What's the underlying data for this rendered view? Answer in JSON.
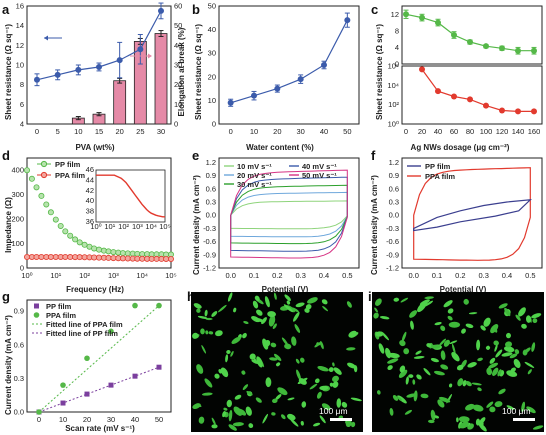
{
  "chart_data": [
    {
      "id": "a",
      "panel_label": "a",
      "type": "bar",
      "xlabel": "PVA (wt%)",
      "ylabel": "Sheet resistance (Ω sq⁻¹)",
      "y2label": "Elongation at break (%)",
      "categories": [
        "0",
        "5",
        "10",
        "15",
        "20",
        "25",
        "30"
      ],
      "ylim": [
        4,
        16
      ],
      "yticks": [
        4,
        6,
        8,
        10,
        12,
        14,
        16
      ],
      "y2lim": [
        0,
        60
      ],
      "y2ticks": [
        0,
        10,
        20,
        30,
        40,
        50,
        60
      ],
      "series": [
        {
          "name": "Sheet resistance",
          "axis": "left",
          "values": [
            8.5,
            9.0,
            9.5,
            9.8,
            10.5,
            11.6,
            15.5
          ],
          "errors": [
            0.6,
            0.5,
            0.5,
            0.4,
            1.8,
            1.5,
            0.8
          ],
          "color": "#3b5bab"
        },
        {
          "name": "Elongation at break",
          "axis": "right",
          "values": [
            null,
            null,
            3,
            5,
            22,
            42,
            46
          ],
          "errors": [
            0,
            0,
            0.8,
            0.8,
            1.2,
            1.5,
            1.5
          ],
          "color": "#e58aa7"
        }
      ],
      "color": "#3b5bab"
    },
    {
      "id": "b",
      "panel_label": "b",
      "type": "line",
      "xlabel": "Water content (%)",
      "ylabel": "Sheet resistance (Ω sq⁻¹)",
      "x": [
        0,
        10,
        20,
        30,
        40,
        50
      ],
      "values": [
        9,
        12,
        15,
        19,
        25,
        44
      ],
      "errors": [
        1.5,
        1.8,
        1.5,
        1.8,
        1.6,
        3
      ],
      "xlim": [
        -5,
        55
      ],
      "xticks": [
        0,
        10,
        20,
        30,
        40,
        50
      ],
      "ylim": [
        0,
        50
      ],
      "yticks": [
        0,
        10,
        20,
        30,
        40,
        50
      ],
      "color": "#3b5bab"
    },
    {
      "id": "c",
      "panel_label": "c",
      "type": "line",
      "xlabel": "Ag NWs dosage (μg cm⁻²)",
      "ylabel": "Sheet resistance (Ω sq⁻¹)",
      "x": [
        0,
        20,
        40,
        60,
        80,
        100,
        120,
        140,
        160
      ],
      "top": {
        "values": [
          12,
          11.2,
          10,
          7,
          5.3,
          4.3,
          3.8,
          3.2,
          3.2
        ],
        "errors": [
          1,
          0.8,
          0.8,
          0.8,
          0.5,
          0.4,
          0.5,
          0.8,
          0.8
        ],
        "ylim": [
          0,
          14
        ],
        "yticks": [
          0,
          4,
          8,
          12
        ],
        "color": "#55b848"
      },
      "bottom": {
        "x": [
          20,
          40,
          60,
          80,
          100,
          120,
          140,
          160
        ],
        "values": [
          450000,
          2500,
          700,
          350,
          80,
          25,
          20,
          20
        ],
        "ylim_exp": [
          0,
          6
        ],
        "yticks": [
          "10⁰",
          "10²",
          "10⁴",
          "10⁶"
        ],
        "color": "#e23a2e"
      },
      "xlim": [
        0,
        165
      ],
      "xticks": [
        0,
        20,
        40,
        60,
        80,
        100,
        120,
        140,
        160
      ]
    },
    {
      "id": "d",
      "panel_label": "d",
      "type": "scatter",
      "xlabel": "Frequency (Hz)",
      "ylabel": "Impedance (Ω)",
      "xlim_exp": [
        0,
        5
      ],
      "xticks": [
        "10⁰",
        "10¹",
        "10²",
        "10³",
        "10⁴",
        "10⁵"
      ],
      "ylim": [
        0,
        450
      ],
      "yticks": [
        0,
        100,
        200,
        300,
        400
      ],
      "series": [
        {
          "name": "PP film",
          "color": "#55b848",
          "x_exp": [
            0,
            0.17,
            0.33,
            0.5,
            0.67,
            0.83,
            1,
            1.17,
            1.33,
            1.5,
            1.67,
            1.83,
            2,
            2.17,
            2.33,
            2.5,
            2.67,
            2.83,
            3,
            3.17,
            3.33,
            3.5,
            3.67,
            3.83,
            4,
            4.17,
            4.33,
            4.5,
            4.67,
            4.83,
            5
          ],
          "values": [
            400,
            365,
            330,
            295,
            260,
            228,
            198,
            172,
            150,
            132,
            117,
            105,
            95,
            87,
            80,
            75,
            71,
            68,
            65,
            63,
            61,
            60,
            59,
            58,
            57,
            57,
            56,
            56,
            56,
            55,
            55
          ]
        },
        {
          "name": "PPA film",
          "color": "#e23a2e",
          "x_exp": [
            0,
            0.17,
            0.33,
            0.5,
            0.67,
            0.83,
            1,
            1.17,
            1.33,
            1.5,
            1.67,
            1.83,
            2,
            2.17,
            2.33,
            2.5,
            2.67,
            2.83,
            3,
            3.17,
            3.33,
            3.5,
            3.67,
            3.83,
            4,
            4.17,
            4.33,
            4.5,
            4.67,
            4.83,
            5
          ],
          "values": [
            45,
            45,
            45,
            45,
            45,
            45,
            45,
            45,
            45,
            44.8,
            44.6,
            44.4,
            44,
            43.6,
            43,
            42.4,
            41.8,
            41.2,
            40.6,
            40,
            39.4,
            38.9,
            38.4,
            38,
            37.7,
            37.5,
            37.3,
            37.2,
            37.1,
            37,
            37
          ]
        }
      ],
      "inset": {
        "ylim": [
          36,
          46
        ],
        "yticks": [
          36,
          38,
          40,
          42,
          44,
          46
        ],
        "xticks": [
          "10⁰",
          "10¹",
          "10²",
          "10³",
          "10⁴",
          "10⁵"
        ]
      }
    },
    {
      "id": "e",
      "panel_label": "e",
      "type": "line",
      "xlabel": "Potential (V)",
      "ylabel": "Current density (mA cm⁻²)",
      "xlim": [
        -0.05,
        0.55
      ],
      "xticks": [
        0.0,
        0.1,
        0.2,
        0.3,
        0.4,
        0.5
      ],
      "ylim": [
        -1.2,
        1.3
      ],
      "yticks": [
        -1.2,
        -0.9,
        -0.6,
        -0.3,
        0.0,
        0.3,
        0.6,
        0.9,
        1.2
      ],
      "series": [
        {
          "name": "10 mV s⁻¹",
          "color": "#8fd47c",
          "amp": 0.3
        },
        {
          "name": "20 mV s⁻¹",
          "color": "#6fa8dc",
          "amp": 0.48
        },
        {
          "name": "30 mV s⁻¹",
          "color": "#2ca02c",
          "amp": 0.63
        },
        {
          "name": "40 mV s⁻¹",
          "color": "#3b5bab",
          "amp": 0.8
        },
        {
          "name": "50 mV s⁻¹",
          "color": "#d63384",
          "amp": 0.95
        }
      ]
    },
    {
      "id": "f",
      "panel_label": "f",
      "type": "line",
      "xlabel": "Potential (V)",
      "ylabel": "Current density (mA cm⁻²)",
      "xlim": [
        -0.05,
        0.55
      ],
      "xticks": [
        0.0,
        0.1,
        0.2,
        0.3,
        0.4,
        0.5
      ],
      "ylim": [
        -1.2,
        1.3
      ],
      "yticks": [
        -1.2,
        -0.9,
        -0.6,
        -0.3,
        0.0,
        0.3,
        0.6,
        0.9,
        1.2
      ],
      "series": [
        {
          "name": "PP film",
          "color": "#3b3f8f"
        },
        {
          "name": "PPA film",
          "color": "#e23a2e"
        }
      ]
    },
    {
      "id": "g",
      "panel_label": "g",
      "type": "scatter",
      "xlabel": "Scan rate (mV s⁻¹)",
      "ylabel": "Current density (mA cm⁻²)",
      "x": [
        0,
        10,
        20,
        30,
        40,
        50
      ],
      "xlim": [
        -5,
        55
      ],
      "xticks": [
        0,
        10,
        20,
        30,
        40,
        50
      ],
      "ylim": [
        0,
        1.0
      ],
      "yticks": [
        0.0,
        0.3,
        0.6,
        0.9
      ],
      "series": [
        {
          "name": "PP film",
          "color": "#7b3f9e",
          "marker": "square",
          "values": [
            0,
            0.08,
            0.16,
            0.24,
            0.32,
            0.4
          ]
        },
        {
          "name": "PPA film",
          "color": "#55b848",
          "marker": "circle",
          "values": [
            0,
            0.24,
            0.48,
            0.72,
            0.95,
            0.95
          ]
        },
        {
          "name": "Fitted line of PPA film",
          "color": "#55b848",
          "marker": "line",
          "values": [
            0,
            0.19,
            0.38,
            0.57,
            0.76,
            0.95
          ]
        },
        {
          "name": "Fitted line of PP film",
          "color": "#7b3f9e",
          "marker": "line",
          "values": [
            0,
            0.08,
            0.16,
            0.24,
            0.32,
            0.4
          ]
        }
      ]
    }
  ],
  "images": [
    {
      "id": "h",
      "panel_label": "h",
      "scale_label": "100 μm"
    },
    {
      "id": "i",
      "panel_label": "i",
      "scale_label": "100 μm"
    }
  ]
}
